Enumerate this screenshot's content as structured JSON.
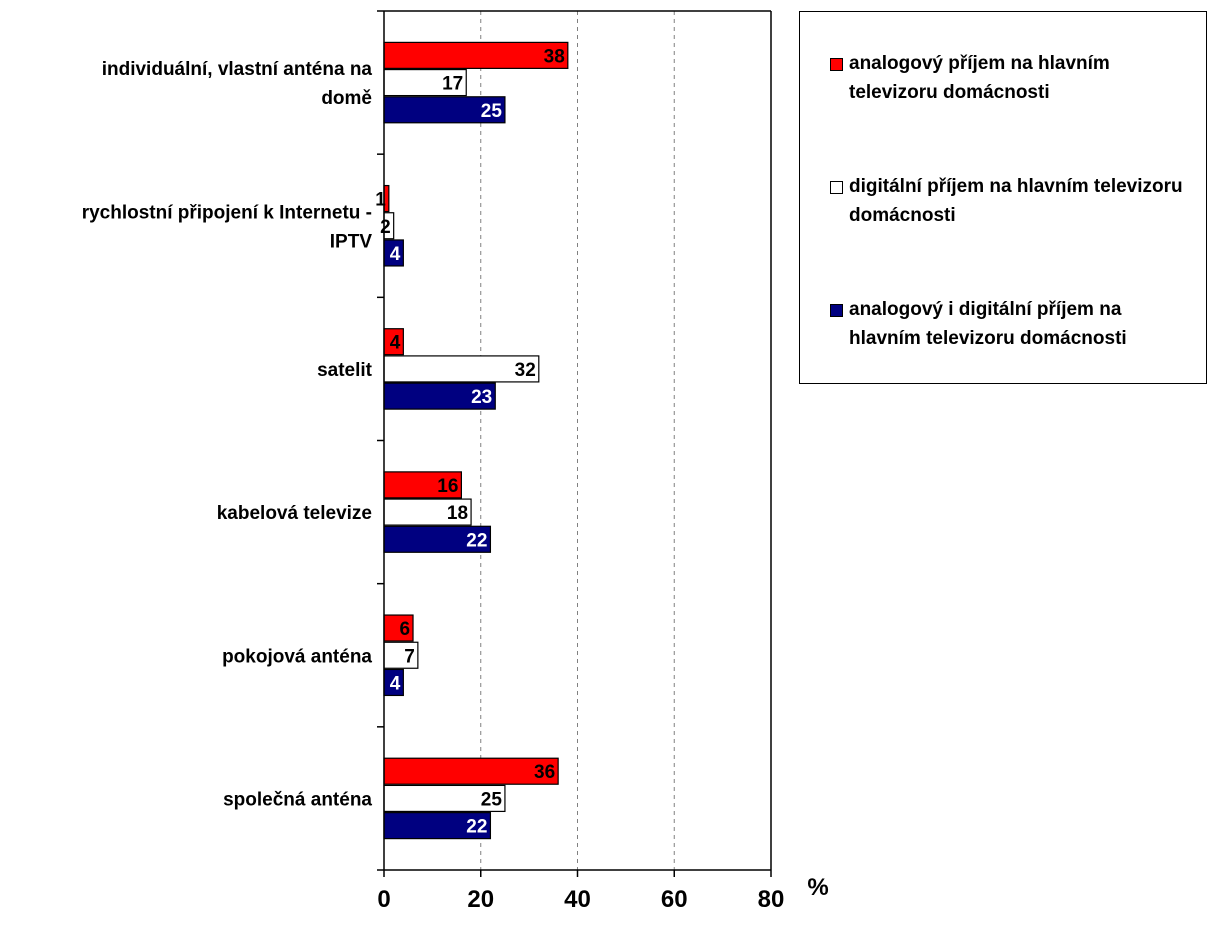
{
  "chart_data": {
    "type": "bar",
    "orientation": "horizontal",
    "categories": [
      "individuální, vlastní anténa na domě",
      "rychlostní připojení k Internetu - IPTV",
      "satelit",
      "kabelová televize",
      "pokojová anténa",
      "společná anténa"
    ],
    "series": [
      {
        "name": "analogový příjem na hlavním televizoru domácnosti",
        "color": "#ff0000",
        "values": [
          38,
          1,
          4,
          16,
          6,
          36
        ],
        "labels": [
          "38",
          "1",
          "4",
          "16",
          "6",
          "36"
        ]
      },
      {
        "name": "digitální příjem na hlavním televizoru domácnosti",
        "color": "#ffffff",
        "values": [
          17,
          2,
          32,
          18,
          7,
          25
        ],
        "labels": [
          "17",
          "2",
          "32",
          "18",
          "7",
          "25"
        ]
      },
      {
        "name": "analogový i digitální příjem na hlavním televizoru domácnosti",
        "color": "#000080",
        "values": [
          25,
          4,
          23,
          22,
          4,
          22
        ],
        "labels": [
          "25",
          "4",
          "23",
          "22",
          "4",
          "22"
        ]
      }
    ],
    "xlim": [
      0,
      80
    ],
    "xticks": [
      "0",
      "20",
      "40",
      "60",
      "80"
    ],
    "xlabel": "%",
    "grid": "vertical-dashed",
    "legend_position": "right"
  }
}
